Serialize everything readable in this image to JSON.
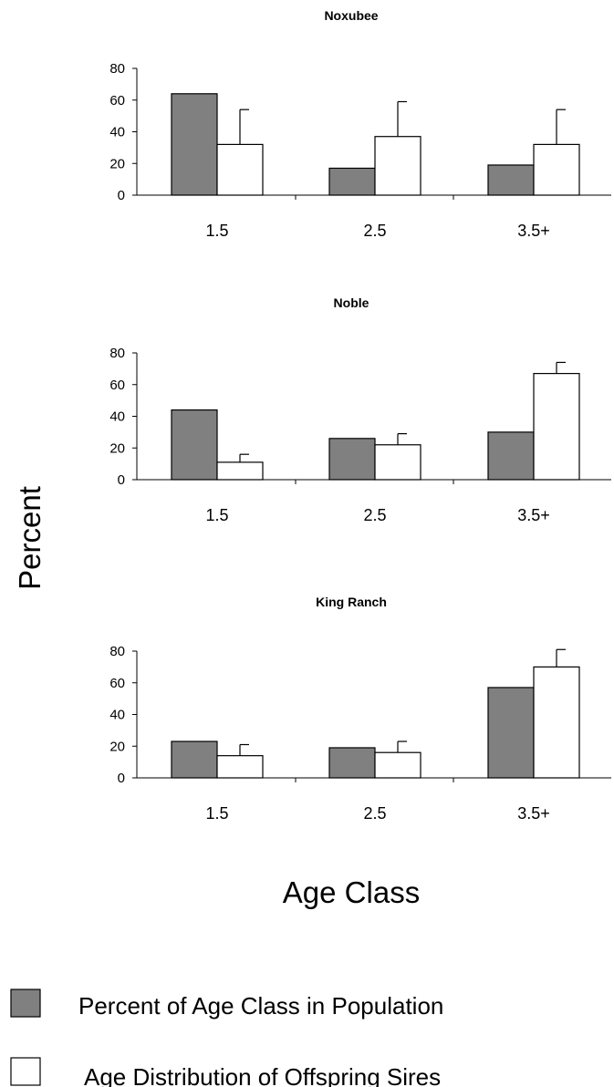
{
  "chart_data": {
    "type": "bar",
    "ylabel": "Percent",
    "xlabel": "Age Class",
    "ylim": [
      0,
      80
    ],
    "yticks": [
      0,
      20,
      40,
      60,
      80
    ],
    "categories": [
      "1.5",
      "2.5",
      "3.5+"
    ],
    "legend": {
      "placement": "bottom",
      "entries": [
        {
          "name": "Percent of Age Class in Population",
          "color": "#808080"
        },
        {
          "name": "Age Distribution of Offspring Sires",
          "color": "#ffffff"
        }
      ]
    },
    "panels": [
      {
        "title": "Noxubee",
        "series": [
          {
            "name": "Percent of Age Class in Population",
            "values": [
              64,
              17,
              19
            ]
          },
          {
            "name": "Age Distribution of Offspring Sires",
            "values": [
              32,
              37,
              32
            ],
            "error_upper": [
              54,
              59,
              54
            ]
          }
        ]
      },
      {
        "title": "Noble",
        "series": [
          {
            "name": "Percent of Age Class in Population",
            "values": [
              44,
              26,
              30
            ]
          },
          {
            "name": "Age Distribution of Offspring Sires",
            "values": [
              11,
              22,
              67
            ],
            "error_upper": [
              16,
              29,
              74
            ]
          }
        ]
      },
      {
        "title": "King Ranch",
        "series": [
          {
            "name": "Percent of Age Class in Population",
            "values": [
              23,
              19,
              57
            ]
          },
          {
            "name": "Age Distribution of Offspring Sires",
            "values": [
              14,
              16,
              70
            ],
            "error_upper": [
              21,
              23,
              81
            ]
          }
        ]
      }
    ]
  }
}
